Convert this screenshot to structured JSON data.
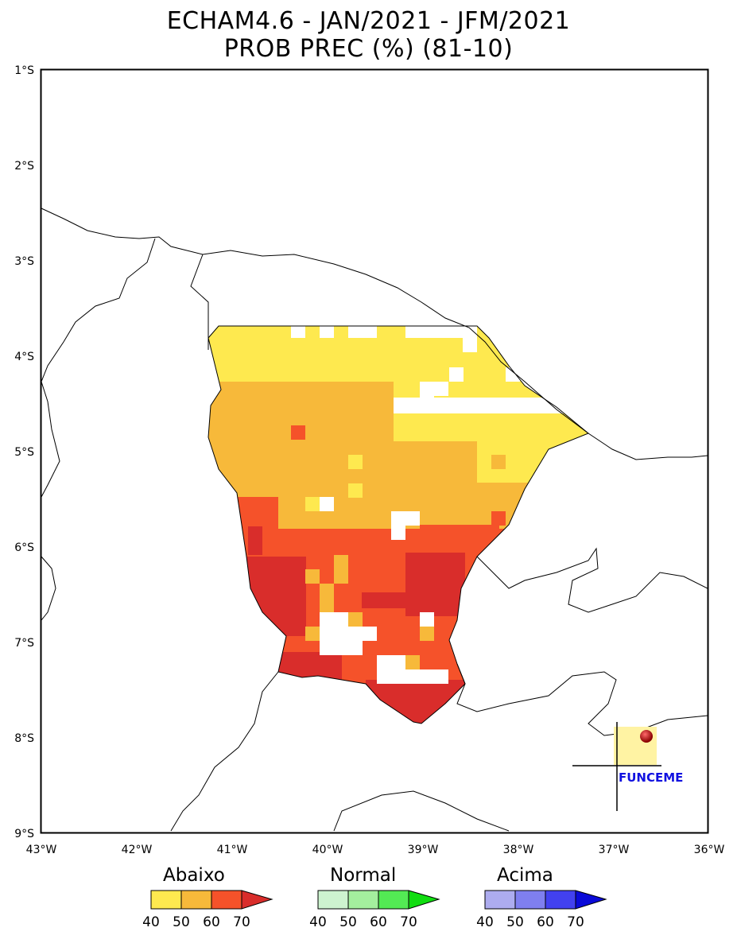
{
  "title": {
    "line1": "ECHAM4.6 - JAN/2021 - JFM/2021",
    "line2": "PROB PREC (%) (81-10)"
  },
  "axes": {
    "y_ticks": [
      "1°S",
      "2°S",
      "3°S",
      "4°S",
      "5°S",
      "6°S",
      "7°S",
      "8°S",
      "9°S"
    ],
    "x_ticks": [
      "43°W",
      "42°W",
      "41°W",
      "40°W",
      "39°W",
      "38°W",
      "37°W",
      "36°W"
    ]
  },
  "logo": {
    "text": "FUNCEME",
    "text_color": "#1010e0"
  },
  "legend": {
    "groups": [
      {
        "label": "Abaixo",
        "colors": [
          "#fee94f",
          "#f7b93a",
          "#f5522a",
          "#d92d2b"
        ],
        "ticks": [
          "40",
          "50",
          "60",
          "70"
        ]
      },
      {
        "label": "Normal",
        "colors": [
          "#cdf3cf",
          "#a4ef9e",
          "#53ea54",
          "#11dd11"
        ],
        "ticks": [
          "40",
          "50",
          "60",
          "70"
        ]
      },
      {
        "label": "Acima",
        "colors": [
          "#adacef",
          "#7f7fef",
          "#4241ef",
          "#0a0ad8"
        ],
        "ticks": [
          "40",
          "50",
          "60",
          "70"
        ]
      }
    ]
  },
  "colors": {
    "below_40": "#fee94f",
    "below_50": "#f7b93a",
    "below_60": "#f5522a",
    "below_70": "#d92d2b"
  }
}
